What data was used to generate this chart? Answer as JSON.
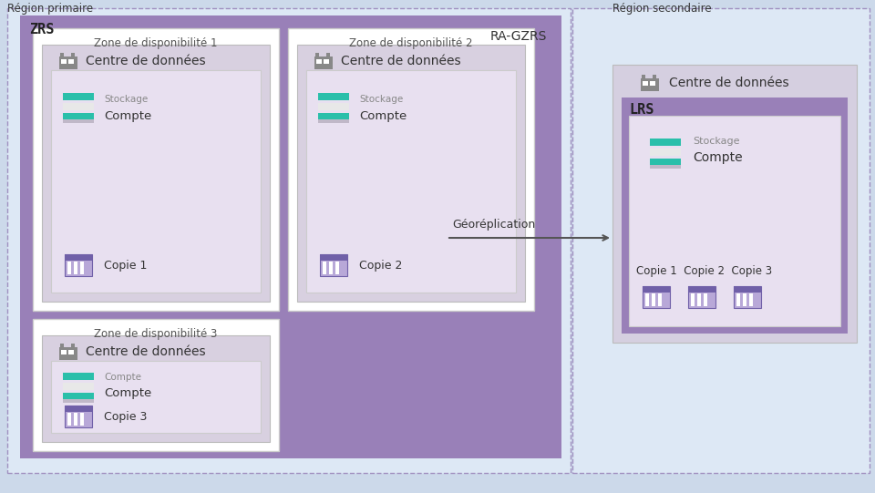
{
  "bg_color": "#ccd9ea",
  "primary_region_label": "Région primaire",
  "secondary_region_label": "Région secondaire",
  "outer_primary_bg": "#dde8f5",
  "outer_secondary_bg": "#dde8f5",
  "dashed_border_color": "#a090c0",
  "zrs_bg_color": "#9980b8",
  "zrs_label": "ZRS",
  "ragzrs_label": "RA-GZRS",
  "zone_bg_color": "#ffffff",
  "zone_label_color": "#555555",
  "datacenter_bg_color": "#d8d0e0",
  "inner_box_bg_color": "#e8e0f0",
  "lrs_bg_color": "#9980b8",
  "lrs_label": "LRS",
  "lrs_inner_bg_color": "#e8e0f0",
  "zone_labels": [
    "Zone de disponibilité 1",
    "Zone de disponibilité 2",
    "Zone de disponibilité 3"
  ],
  "datacenter_label": "Centre de données",
  "stockage_label": "Stockage",
  "compte_label": "Compte",
  "copy_labels_123": "Copie 1  Copie 2  Copie 3",
  "copy_label_1": "Copie 1",
  "copy_label_2": "Copie 2",
  "copy_label_3": "Copie 3",
  "georep_label": "Géoréplication",
  "teal1_color": "#2abfaa",
  "teal2_color": "#88d8cc",
  "gray_bar_color": "#c0b8c8",
  "white_color": "#ffffff",
  "purple_icon_dark": "#7060a8",
  "purple_icon_light": "#b8a8d8",
  "text_dark": "#333333",
  "text_gray": "#888888",
  "text_zone": "#555555",
  "arrow_color": "#555555"
}
